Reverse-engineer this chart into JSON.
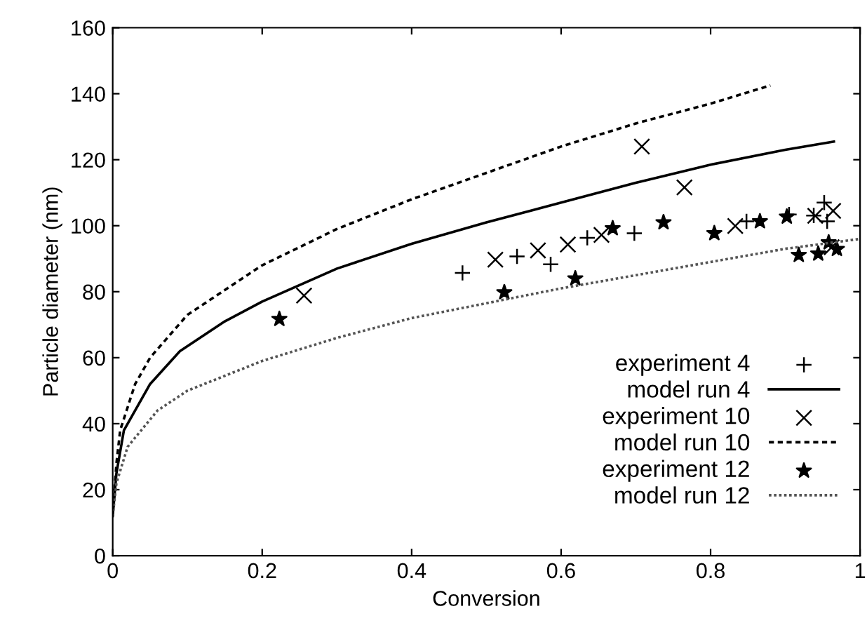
{
  "chart_data": {
    "type": "line",
    "xlabel": "Conversion",
    "ylabel": "Particle diameter (nm)",
    "xlim": [
      0,
      1
    ],
    "xticks": [
      0,
      0.2,
      0.4,
      0.6,
      0.8,
      1
    ],
    "ylim": [
      0,
      160
    ],
    "yticks": [
      0,
      20,
      40,
      60,
      80,
      100,
      120,
      140,
      160
    ],
    "grid": false,
    "legend": "lower right",
    "series": [
      {
        "name": "experiment 4",
        "type": "scatter",
        "marker": "plus",
        "color": "#000000",
        "x": [
          0.468,
          0.541,
          0.586,
          0.635,
          0.698,
          0.848,
          0.905,
          0.938,
          0.952,
          0.956
        ],
        "values": [
          85.7,
          90.7,
          88.3,
          96.3,
          97.7,
          101.3,
          103.4,
          103.1,
          107.0,
          101.3
        ]
      },
      {
        "name": "model run 4",
        "line_style": "solid",
        "color": "#000000",
        "x": [
          0,
          0.005,
          0.015,
          0.05,
          0.09,
          0.15,
          0.2,
          0.3,
          0.4,
          0.5,
          0.6,
          0.7,
          0.8,
          0.9,
          0.965
        ],
        "values": [
          12,
          25,
          38,
          52,
          62,
          71,
          77,
          87,
          94.5,
          101,
          107,
          113,
          118.5,
          123,
          125.5
        ]
      },
      {
        "name": "experiment 10",
        "type": "scatter",
        "marker": "cross",
        "color": "#000000",
        "x": [
          0.256,
          0.512,
          0.569,
          0.609,
          0.654,
          0.708,
          0.765,
          0.833,
          0.94,
          0.964,
          0.962
        ],
        "values": [
          78.8,
          89.7,
          92.5,
          94.3,
          97.2,
          124.0,
          111.6,
          99.9,
          103.0,
          104.5,
          93.5
        ]
      },
      {
        "name": "model run 10",
        "line_style": "dashed",
        "color": "#000000",
        "x": [
          0,
          0.005,
          0.01,
          0.03,
          0.05,
          0.1,
          0.2,
          0.3,
          0.4,
          0.5,
          0.6,
          0.7,
          0.8,
          0.88
        ],
        "values": [
          12,
          28,
          38,
          52,
          60,
          73,
          88,
          99,
          108,
          116,
          124,
          131,
          137,
          142.5
        ]
      },
      {
        "name": "experiment 12",
        "type": "scatter",
        "marker": "star",
        "color": "#000000",
        "x": [
          0.223,
          0.524,
          0.619,
          0.669,
          0.737,
          0.805,
          0.866,
          0.902,
          0.918,
          0.944,
          0.958,
          0.969
        ],
        "values": [
          71.7,
          79.8,
          84.0,
          99.2,
          101.0,
          97.7,
          101.3,
          102.7,
          91.1,
          91.5,
          94.9,
          92.9
        ]
      },
      {
        "name": "model run 12",
        "line_style": "dotted",
        "color": "#555555",
        "x": [
          0,
          0.005,
          0.02,
          0.06,
          0.1,
          0.2,
          0.3,
          0.4,
          0.5,
          0.6,
          0.7,
          0.8,
          0.9,
          1.0
        ],
        "values": [
          12,
          22,
          33,
          44,
          50,
          59,
          66,
          72,
          76.5,
          81,
          85,
          89,
          93,
          96
        ]
      }
    ]
  }
}
